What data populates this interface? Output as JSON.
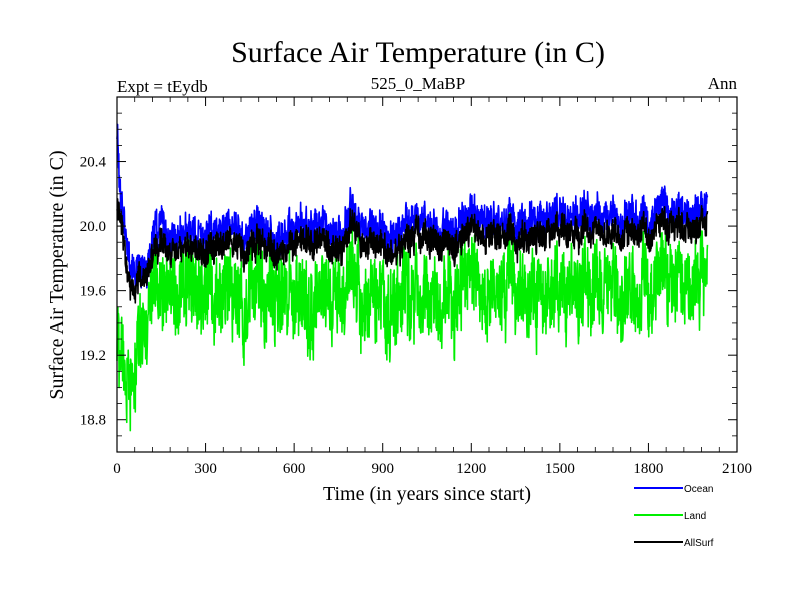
{
  "chart_data": {
    "type": "line",
    "title": "Surface Air Temperature (in C)",
    "subtitle": "525_0_MaBP",
    "left_label": "Expt = tEydb",
    "right_label": "Ann",
    "xlabel": "Time (in years since start)",
    "ylabel": "Surface Air Temperature (in C)",
    "xlim": [
      0,
      2100
    ],
    "ylim": [
      18.6,
      20.8
    ],
    "x_ticks": [
      0,
      300,
      600,
      900,
      1200,
      1500,
      1800,
      2100
    ],
    "x_tick_labels": [
      "0",
      "300",
      "600",
      "900",
      "1200",
      "1500",
      "1800",
      "2100"
    ],
    "y_ticks": [
      18.8,
      19.2,
      19.6,
      20.0,
      20.4
    ],
    "y_tick_labels": [
      "18.8",
      "19.2",
      "19.6",
      "20.0",
      "20.4"
    ],
    "legend_position": "bottom-right, outside plot",
    "series": [
      {
        "name": "Ocean",
        "color": "#0000ff",
        "x": [
          0,
          10,
          25,
          50,
          75,
          100,
          125,
          150,
          175,
          200,
          250,
          300,
          350,
          400,
          450,
          500,
          550,
          600,
          650,
          700,
          750,
          800,
          850,
          900,
          950,
          1000,
          1050,
          1100,
          1150,
          1200,
          1250,
          1300,
          1350,
          1400,
          1450,
          1500,
          1550,
          1600,
          1650,
          1700,
          1750,
          1800,
          1850,
          1900,
          1950,
          2000
        ],
        "values": [
          20.6,
          20.2,
          20.0,
          19.75,
          19.7,
          19.75,
          19.9,
          20.1,
          19.9,
          19.95,
          19.95,
          19.95,
          20.0,
          20.0,
          19.95,
          20.0,
          19.9,
          20.0,
          20.05,
          20.0,
          19.95,
          20.05,
          20.0,
          20.0,
          19.95,
          20.05,
          20.05,
          20.0,
          20.0,
          20.05,
          20.05,
          20.05,
          20.0,
          20.05,
          20.05,
          20.1,
          20.05,
          20.1,
          20.05,
          20.05,
          20.1,
          20.05,
          20.1,
          20.1,
          20.1,
          20.1
        ],
        "noise": 0.12
      },
      {
        "name": "Land",
        "color": "#00ee00",
        "x": [
          0,
          10,
          25,
          50,
          75,
          100,
          125,
          150,
          175,
          200,
          250,
          300,
          350,
          400,
          450,
          500,
          550,
          600,
          650,
          700,
          750,
          800,
          850,
          900,
          950,
          1000,
          1050,
          1100,
          1150,
          1200,
          1250,
          1300,
          1350,
          1400,
          1450,
          1500,
          1550,
          1600,
          1650,
          1700,
          1750,
          1800,
          1850,
          1900,
          1950,
          2000
        ],
        "values": [
          19.3,
          19.2,
          19.1,
          19.0,
          19.25,
          19.4,
          19.55,
          19.65,
          19.6,
          19.6,
          19.6,
          19.6,
          19.6,
          19.6,
          19.55,
          19.6,
          19.55,
          19.6,
          19.6,
          19.6,
          19.6,
          19.6,
          19.55,
          19.6,
          19.55,
          19.6,
          19.6,
          19.6,
          19.6,
          19.6,
          19.6,
          19.6,
          19.6,
          19.6,
          19.6,
          19.65,
          19.6,
          19.65,
          19.6,
          19.6,
          19.65,
          19.6,
          19.65,
          19.65,
          19.65,
          19.65
        ],
        "noise": 0.28
      },
      {
        "name": "AllSurf",
        "color": "#000000",
        "x": [
          0,
          10,
          25,
          50,
          75,
          100,
          125,
          150,
          175,
          200,
          250,
          300,
          350,
          400,
          450,
          500,
          550,
          600,
          650,
          700,
          750,
          800,
          850,
          900,
          950,
          1000,
          1050,
          1100,
          1150,
          1200,
          1250,
          1300,
          1350,
          1400,
          1450,
          1500,
          1550,
          1600,
          1650,
          1700,
          1750,
          1800,
          1850,
          1900,
          1950,
          2000
        ],
        "values": [
          20.15,
          20.05,
          19.85,
          19.6,
          19.65,
          19.7,
          19.8,
          19.95,
          19.85,
          19.85,
          19.85,
          19.85,
          19.9,
          19.9,
          19.85,
          19.9,
          19.8,
          19.9,
          19.95,
          19.9,
          19.85,
          19.95,
          19.9,
          19.9,
          19.85,
          19.95,
          19.95,
          19.9,
          19.9,
          19.95,
          19.95,
          19.95,
          19.9,
          19.95,
          19.95,
          20.0,
          19.95,
          20.0,
          19.95,
          19.95,
          20.0,
          19.95,
          20.0,
          20.0,
          20.0,
          20.0
        ],
        "noise": 0.1
      }
    ]
  }
}
